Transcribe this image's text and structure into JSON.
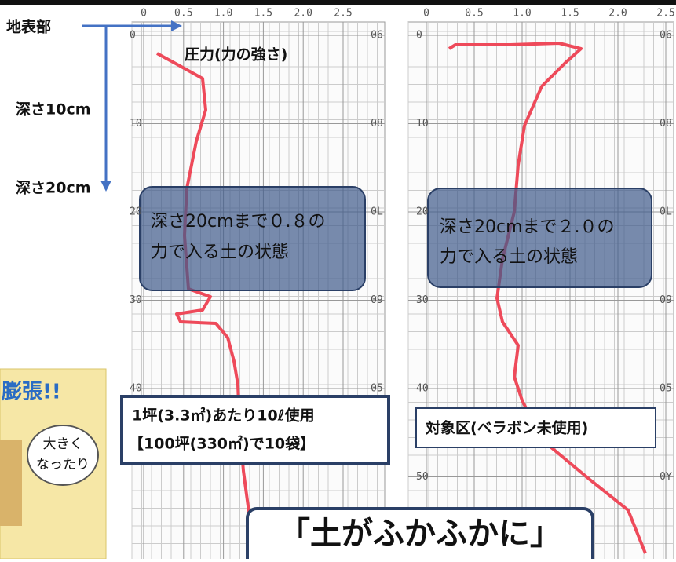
{
  "legend": {
    "surface": "地表部",
    "depth10": "深さ10cm",
    "depth20": "深さ20cm",
    "pressure": "圧力(力の強さ)"
  },
  "charts": [
    {
      "xticks": [
        "0",
        "0.5",
        "1.0",
        "1.5",
        "2.0",
        "2.5"
      ],
      "depths": [
        "0",
        "10",
        "20",
        "30",
        "40"
      ],
      "side": [
        "06",
        "08",
        "0L",
        "09",
        "05"
      ],
      "box": [
        "深さ20cmまで０.８の",
        "力で入る土の状態"
      ],
      "note": [
        "1坪(3.3㎡)あたり10ℓ使用",
        "【100坪(330㎡)で10袋】"
      ]
    },
    {
      "xticks": [
        "0",
        "0.5",
        "1.0",
        "1.5",
        "2.0",
        "2.5"
      ],
      "depths": [
        "0",
        "10",
        "20",
        "30",
        "40",
        "50"
      ],
      "side": [
        "06",
        "08",
        "0L",
        "09",
        "05",
        "0Y"
      ],
      "box": [
        "深さ20cmまで２.０の",
        "力で入る土の状態"
      ],
      "note": [
        "対象区(ベラボン未使用)"
      ]
    }
  ],
  "banner": "「土がふかふかに」",
  "cartoon": {
    "title": "膨張!!",
    "bubble": [
      "大きく",
      "なったり"
    ]
  }
}
